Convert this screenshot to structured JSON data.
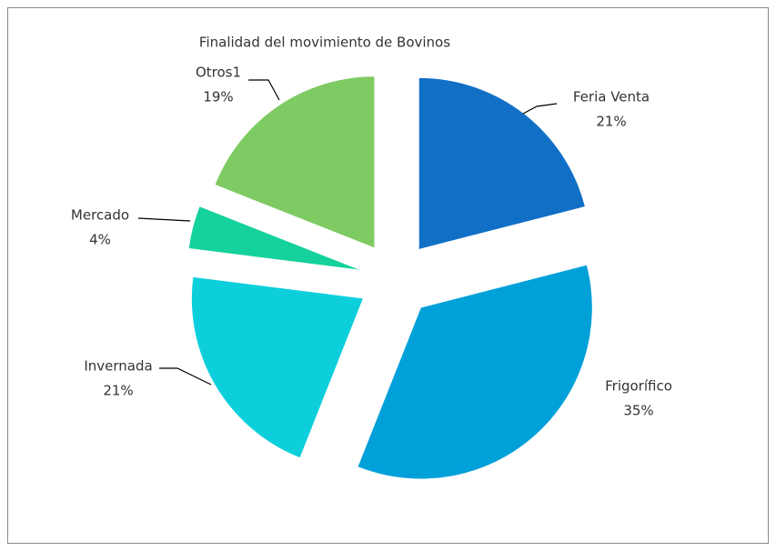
{
  "chart_data": {
    "type": "pie",
    "title": "Finalidad del movimiento de Bovinos",
    "categories": [
      "Feria Venta",
      "Frigorífico",
      "Invernada",
      "Mercado",
      "Otros1"
    ],
    "values": [
      21,
      35,
      21,
      4,
      19
    ],
    "value_labels": [
      "21%",
      "35%",
      "21%",
      "4%",
      "19%"
    ],
    "colors": [
      "#1170c6",
      "#00a0d9",
      "#0ccfdb",
      "#15d19b",
      "#7ecb63"
    ]
  }
}
